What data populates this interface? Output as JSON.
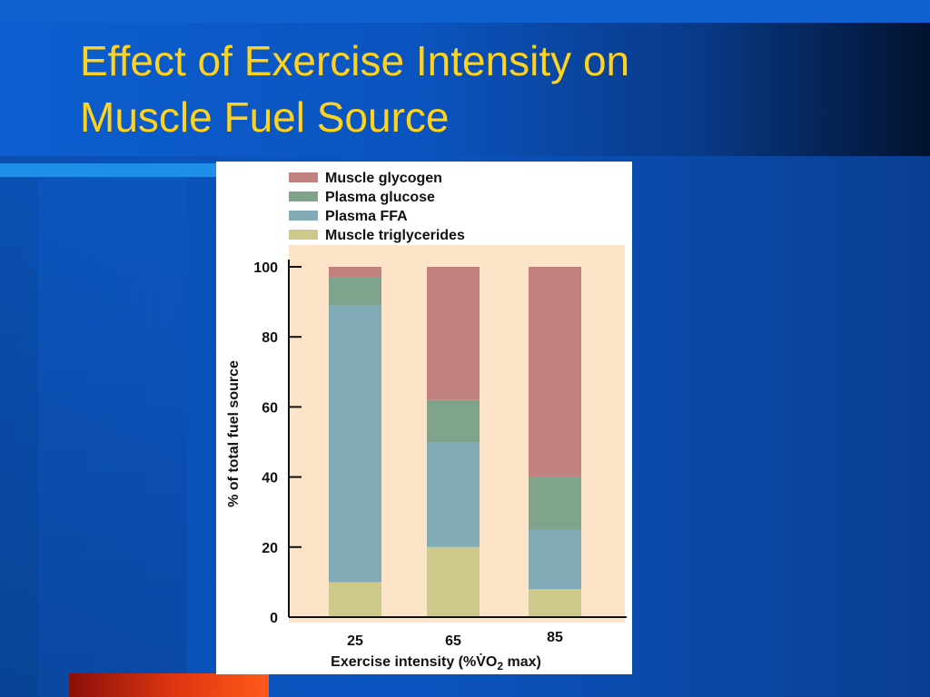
{
  "slide": {
    "title_line1": "Effect of Exercise Intensity on",
    "title_line2": "Muscle Fuel Source"
  },
  "colors": {
    "title": "#ffd21e",
    "plot_background": "#fde3c8",
    "muscle_glycogen": "#c0817f",
    "plasma_glucose": "#80a38b",
    "plasma_ffa": "#81abb6",
    "muscle_triglycerides": "#cdc98a"
  },
  "chart_data": {
    "type": "bar",
    "stacked": true,
    "title": "",
    "xlabel_main": "Exercise intensity (%V̇O",
    "xlabel_sub": "2",
    "xlabel_tail": " max)",
    "ylabel": "% of total fuel source",
    "ylim": [
      0,
      100
    ],
    "yticks": [
      0,
      20,
      40,
      60,
      80,
      100
    ],
    "categories": [
      "25",
      "65",
      "85"
    ],
    "legend_position": "top",
    "series": [
      {
        "name": "Muscle triglycerides",
        "key": "muscle_triglycerides",
        "values": [
          10,
          20,
          8
        ]
      },
      {
        "name": "Plasma FFA",
        "key": "plasma_ffa",
        "values": [
          79,
          30,
          17
        ]
      },
      {
        "name": "Plasma glucose",
        "key": "plasma_glucose",
        "values": [
          8,
          12,
          15
        ]
      },
      {
        "name": "Muscle glycogen",
        "key": "muscle_glycogen",
        "values": [
          3,
          38,
          60
        ]
      }
    ],
    "legend_order": [
      "Muscle glycogen",
      "Plasma glucose",
      "Plasma FFA",
      "Muscle triglycerides"
    ]
  }
}
